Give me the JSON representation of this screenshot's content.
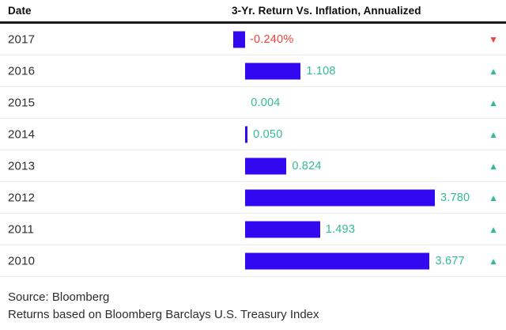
{
  "header": {
    "date_label": "Date",
    "title": "3-Yr. Return Vs. Inflation, Annualized"
  },
  "rows": [
    {
      "year": "2017",
      "value": -0.24,
      "display": "-0.240%",
      "direction": "down"
    },
    {
      "year": "2016",
      "value": 1.108,
      "display": "1.108",
      "direction": "up"
    },
    {
      "year": "2015",
      "value": 0.004,
      "display": "0.004",
      "direction": "up"
    },
    {
      "year": "2014",
      "value": 0.05,
      "display": "0.050",
      "direction": "up"
    },
    {
      "year": "2013",
      "value": 0.824,
      "display": "0.824",
      "direction": "up"
    },
    {
      "year": "2012",
      "value": 3.78,
      "display": "3.780",
      "direction": "up"
    },
    {
      "year": "2011",
      "value": 1.493,
      "display": "1.493",
      "direction": "up"
    },
    {
      "year": "2010",
      "value": 3.677,
      "display": "3.677",
      "direction": "up"
    }
  ],
  "icons": {
    "up_triangle": "▲",
    "down_triangle": "▼"
  },
  "colors": {
    "bar_blue": "#3208f0",
    "positive_green": "#33bd8b",
    "negative_red": "#f5413c"
  },
  "footer": {
    "source": "Source: Bloomberg",
    "note": "Returns based on Bloomberg Barclays U.S. Treasury Index"
  },
  "chart_data": {
    "type": "bar",
    "orientation": "horizontal",
    "title": "3-Yr. Return Vs. Inflation, Annualized",
    "ylabel": "Date",
    "xlabel": "",
    "categories": [
      "2017",
      "2016",
      "2015",
      "2014",
      "2013",
      "2012",
      "2011",
      "2010"
    ],
    "values": [
      -0.24,
      1.108,
      0.004,
      0.05,
      0.824,
      3.78,
      1.493,
      3.677
    ],
    "value_labels": [
      "-0.240%",
      "1.108",
      "0.004",
      "0.050",
      "0.824",
      "3.780",
      "1.493",
      "3.677"
    ],
    "directions": [
      "down",
      "up",
      "up",
      "up",
      "up",
      "up",
      "up",
      "up"
    ],
    "xlim": [
      -0.5,
      5.0
    ],
    "grid": false,
    "legend": false,
    "annotations": [
      "Source: Bloomberg",
      "Returns based on Bloomberg Barclays U.S. Treasury Index"
    ]
  }
}
